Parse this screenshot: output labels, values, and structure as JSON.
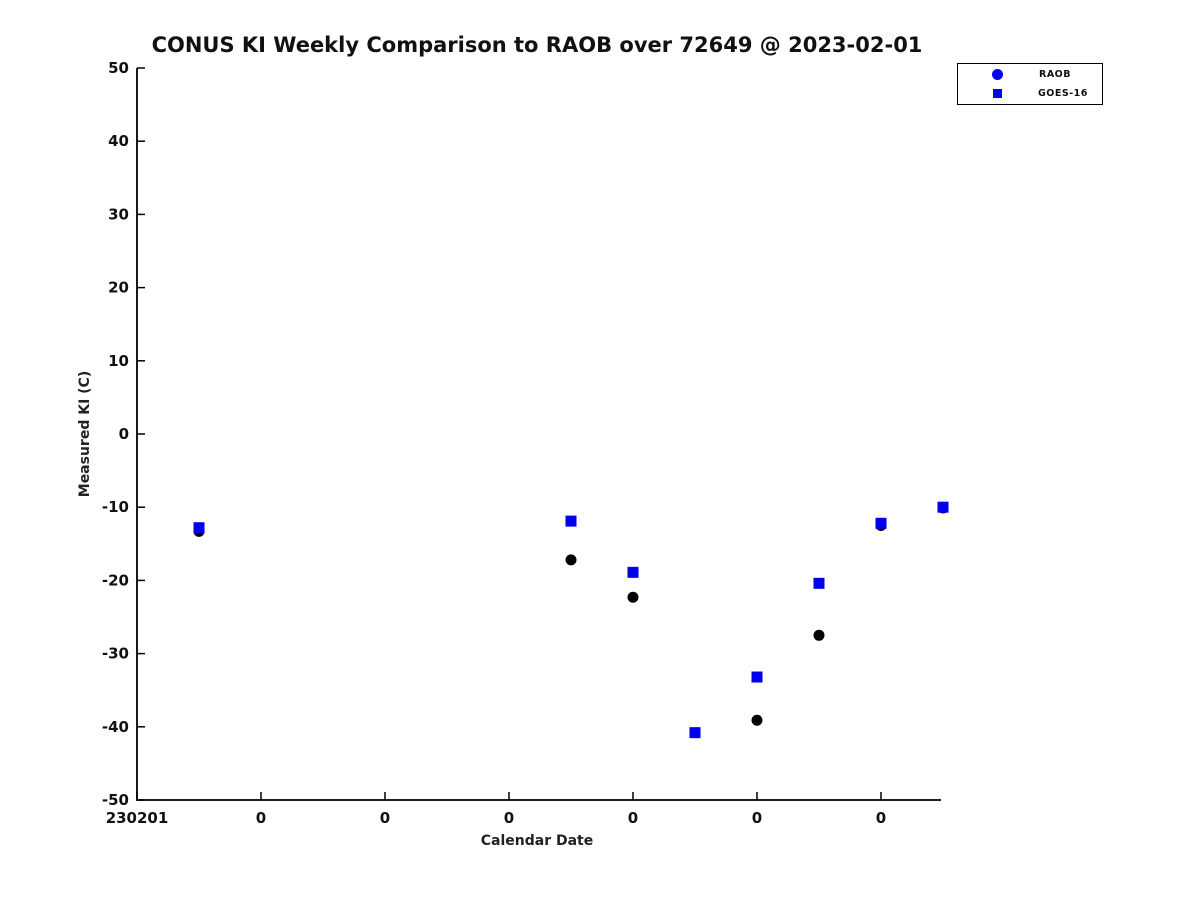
{
  "chart_data": {
    "type": "scatter",
    "title": "CONUS KI Weekly Comparison to RAOB over 72649 @ 2023-02-01",
    "xlabel": "Calendar Date",
    "ylabel": "Measured KI (C)",
    "ylim": [
      -50,
      50
    ],
    "xlim_days": [
      0,
      6.5
    ],
    "y_ticks": [
      50,
      40,
      30,
      20,
      10,
      0,
      -10,
      -20,
      -30,
      -40,
      -50
    ],
    "x_tick_days": [
      0,
      1,
      2,
      3,
      4,
      5,
      6
    ],
    "x_tick_labels": [
      "230201",
      "0",
      "0",
      "0",
      "0",
      "0",
      "0"
    ],
    "grid": false,
    "legend_position": "top-right",
    "colors": {
      "axis": "#000000",
      "raob_marker": "#000000",
      "goes16_marker": "#0000ee",
      "legend_marker": "#0000ee"
    },
    "series": [
      {
        "name": "RAOB",
        "marker": "circle",
        "color": "#000000",
        "points": [
          {
            "x_days": 0.5,
            "y": -13.3
          },
          {
            "x_days": 3.5,
            "y": -17.2
          },
          {
            "x_days": 4.0,
            "y": -22.3
          },
          {
            "x_days": 5.0,
            "y": -39.1
          },
          {
            "x_days": 5.5,
            "y": -27.5
          },
          {
            "x_days": 6.0,
            "y": -12.5
          },
          {
            "x_days": 6.5,
            "y": -10.1
          }
        ]
      },
      {
        "name": "GOES-16",
        "marker": "square",
        "color": "#0000ee",
        "points": [
          {
            "x_days": 0.5,
            "y": -12.8
          },
          {
            "x_days": 3.5,
            "y": -11.9
          },
          {
            "x_days": 4.0,
            "y": -18.9
          },
          {
            "x_days": 4.5,
            "y": -40.8
          },
          {
            "x_days": 5.0,
            "y": -33.2
          },
          {
            "x_days": 5.5,
            "y": -20.4
          },
          {
            "x_days": 6.0,
            "y": -12.2
          },
          {
            "x_days": 6.5,
            "y": -10.0
          }
        ]
      }
    ]
  }
}
